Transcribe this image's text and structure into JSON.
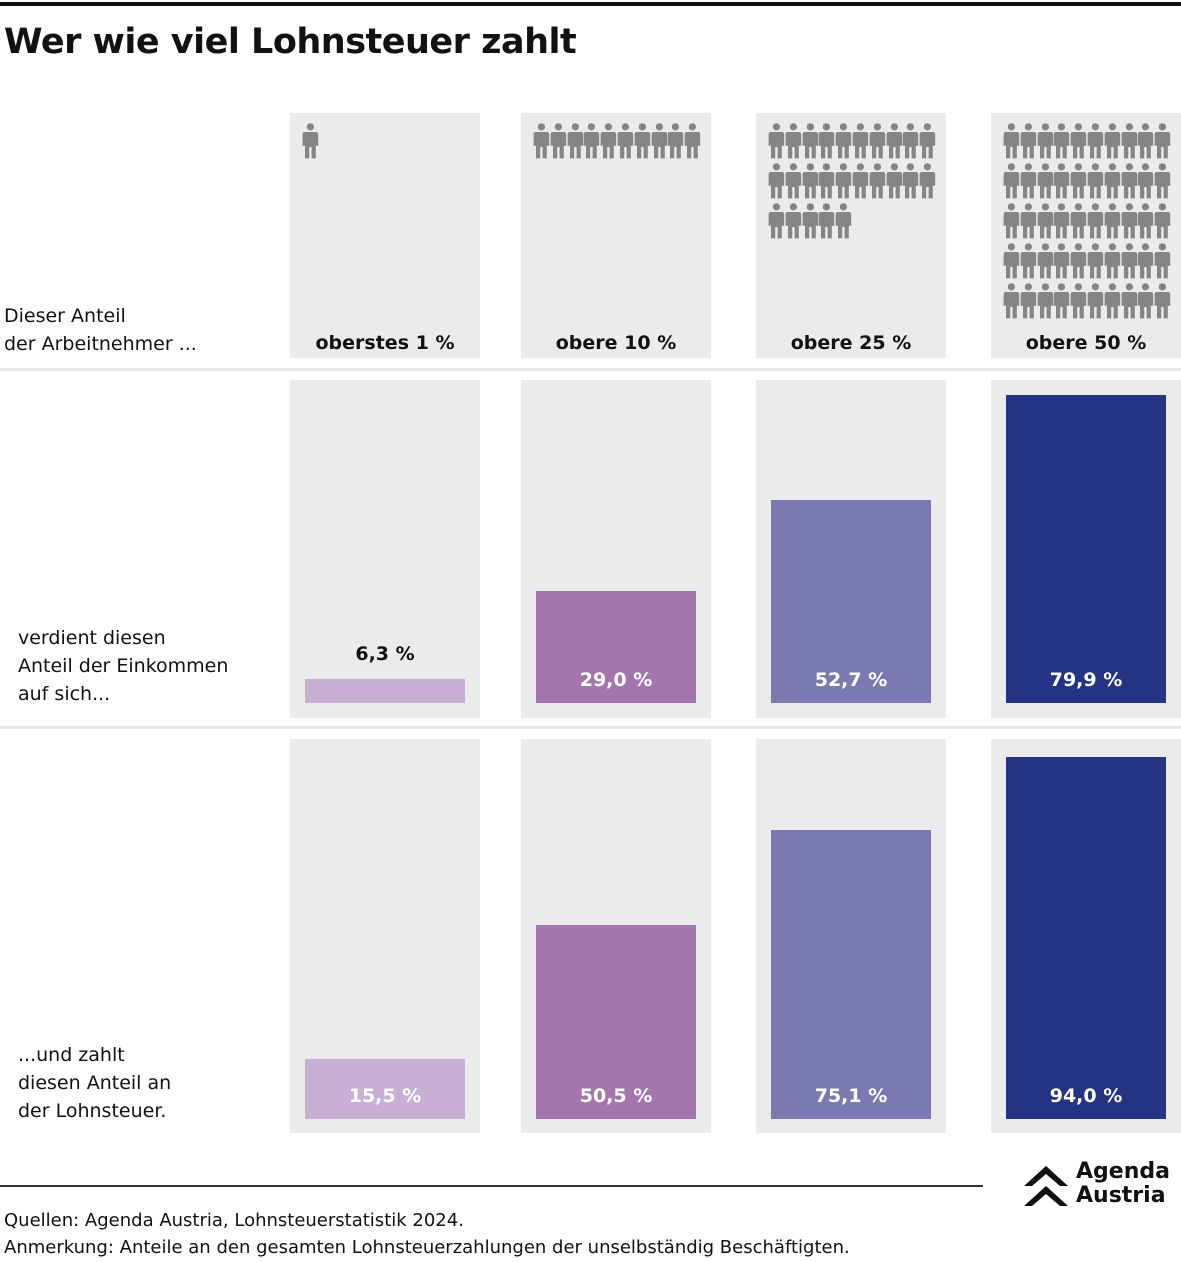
{
  "title": "Wer wie viel Lohnsteuer zahlt",
  "row_labels": {
    "people": "Dieser Anteil\nder Arbeitnehmer ...",
    "income": "verdient diesen\nAnteil der Einkommen\nauf sich...",
    "tax": "...und zahlt\ndiesen Anteil an\nder Lohnsteuer."
  },
  "icons": {
    "person": "person-icon",
    "logo": "double-chevron-up-icon"
  },
  "chart_data": {
    "type": "bar",
    "title": "Wer wie viel Lohnsteuer zahlt",
    "categories": [
      "oberstes 1 %",
      "obere 10 %",
      "obere 25 %",
      "obere 50 %"
    ],
    "people_icons_count": [
      1,
      10,
      25,
      50
    ],
    "series": [
      {
        "name": "Anteil der Einkommen",
        "values": [
          6.3,
          29.0,
          52.7,
          79.9
        ],
        "labels": [
          "6,3 %",
          "29,0 %",
          "52,7 %",
          "79,9 %"
        ]
      },
      {
        "name": "Anteil an der Lohnsteuer",
        "values": [
          15.5,
          50.5,
          75.1,
          94.0
        ],
        "labels": [
          "15,5 %",
          "50,5 %",
          "75,1 %",
          "94,0 %"
        ]
      }
    ],
    "colors": [
      "#c8afd4",
      "#a376ae",
      "#7a79b2",
      "#243482"
    ],
    "ylim": [
      0,
      100
    ],
    "xlabel": "",
    "ylabel": "",
    "grid": false,
    "legend": "none"
  },
  "footer": {
    "source": "Quellen: Agenda Austria, Lohnsteuerstatistik 2024.",
    "note": "Anmerkung: Anteile an den gesamten Lohnsteuerzahlungen der unselbständig Beschäftigten.",
    "logo_line1": "Agenda",
    "logo_line2": "Austria"
  }
}
